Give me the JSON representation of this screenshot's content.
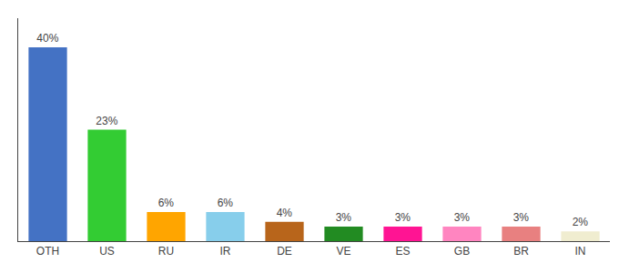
{
  "chart_data": {
    "type": "bar",
    "categories": [
      "OTH",
      "US",
      "RU",
      "IR",
      "DE",
      "VE",
      "ES",
      "GB",
      "BR",
      "IN"
    ],
    "values": [
      40,
      23,
      6,
      6,
      4,
      3,
      3,
      3,
      3,
      2
    ],
    "value_labels": [
      "40%",
      "23%",
      "6%",
      "6%",
      "4%",
      "3%",
      "3%",
      "3%",
      "3%",
      "2%"
    ],
    "colors": [
      "#4472C4",
      "#33CC33",
      "#FFA500",
      "#87CEEB",
      "#B8651B",
      "#228B22",
      "#FF1493",
      "#FF85C0",
      "#E88080",
      "#F0EDD0"
    ],
    "ylim": [
      0,
      46
    ],
    "data_labels": true,
    "tick_labels": "x",
    "grid": false
  }
}
